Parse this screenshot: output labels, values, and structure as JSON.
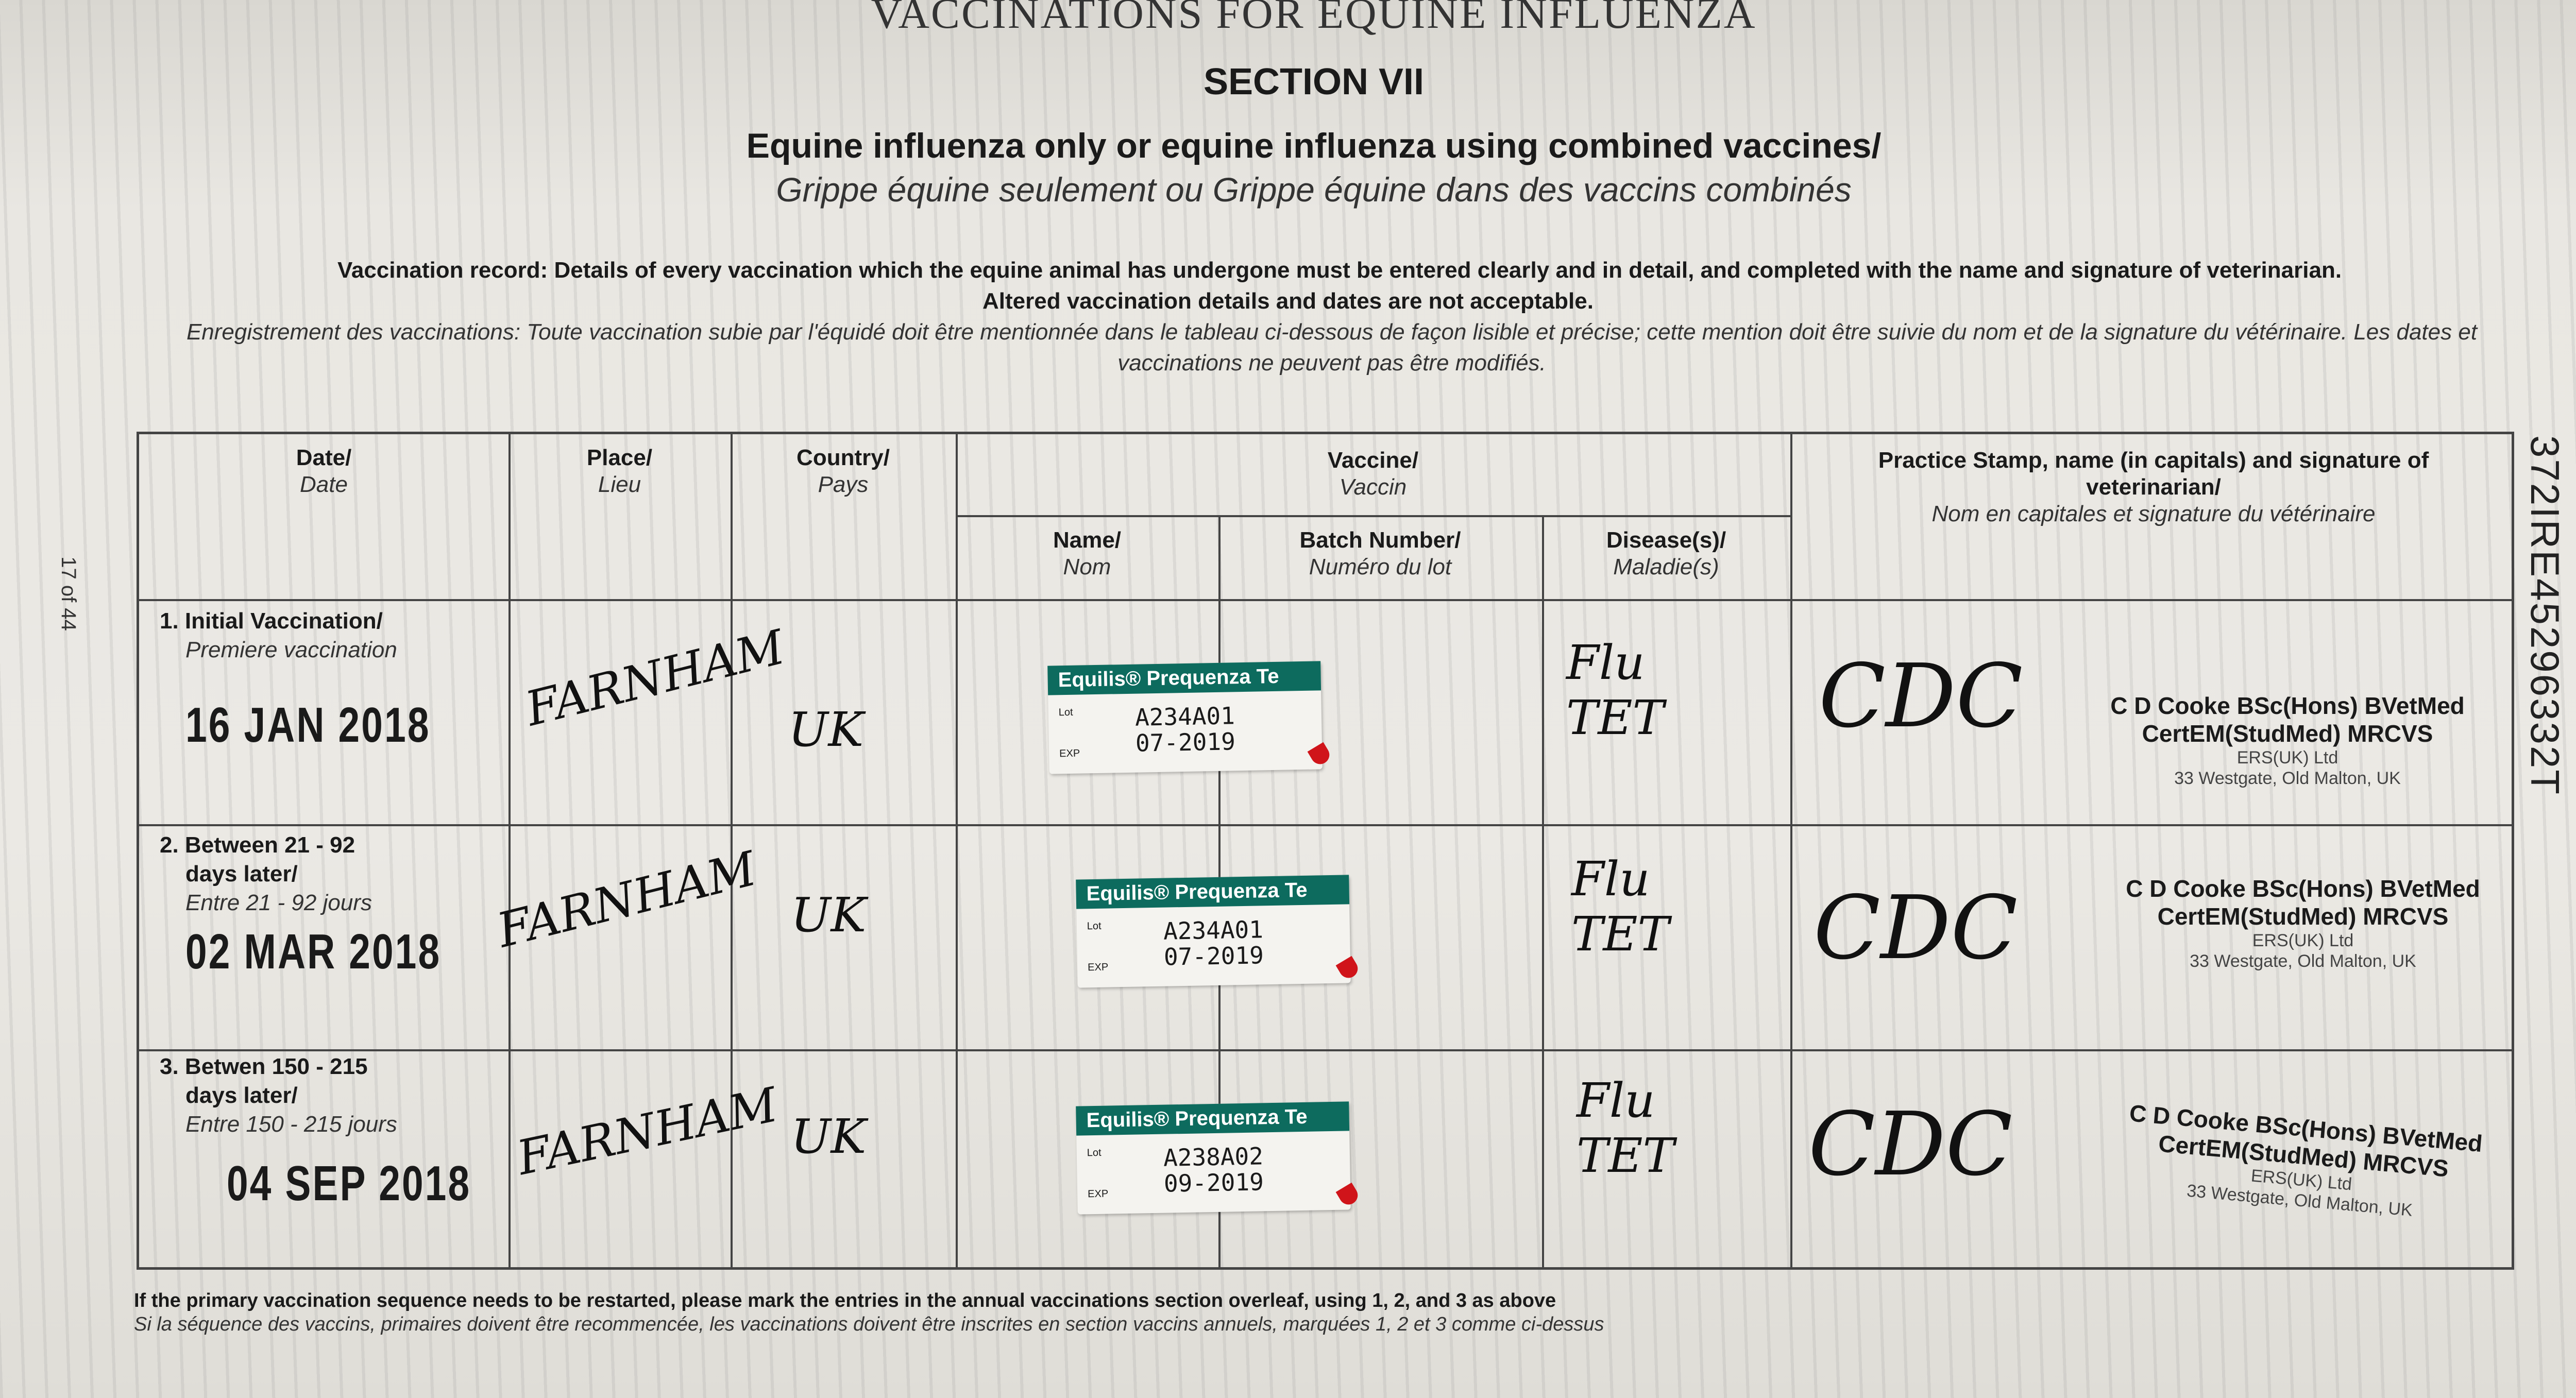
{
  "header": {
    "title": "VACCINATIONS FOR EQUINE INFLUENZA",
    "section": "SECTION VII",
    "subtitle_en": "Equine influenza only or equine influenza using combined vaccines/",
    "subtitle_fr": "Grippe équine seulement ou Grippe équine dans des vaccins combinés"
  },
  "instructions": {
    "en_line1": "Vaccination record: Details of every vaccination which the equine animal has undergone must be entered clearly and in detail, and completed with the name and signature of veterinarian.",
    "en_line2": "Altered vaccination details and dates are not acceptable.",
    "fr": "Enregistrement des vaccinations: Toute vaccination subie par l'équidé doit être mentionnée dans le tableau ci-dessous de façon lisible et précise; cette mention doit être suivie du nom et de la signature du vétérinaire. Les dates et vaccinations ne peuvent pas être modifiés."
  },
  "page_marker": "17 of 44",
  "reference_number": "372IRE45296332T",
  "table": {
    "headers": {
      "date": {
        "en": "Date/",
        "fr": "Date"
      },
      "place": {
        "en": "Place/",
        "fr": "Lieu"
      },
      "country": {
        "en": "Country/",
        "fr": "Pays"
      },
      "vaccine": {
        "en": "Vaccine/",
        "fr": "Vaccin"
      },
      "name": {
        "en": "Name/",
        "fr": "Nom"
      },
      "batch": {
        "en": "Batch Number/",
        "fr": "Numéro du lot"
      },
      "disease": {
        "en": "Disease(s)/",
        "fr": "Maladie(s)"
      },
      "stamp": {
        "en": "Practice Stamp, name (in capitals) and signature of veterinarian/",
        "fr": "Nom en capitales et signature du vétérinaire"
      }
    },
    "rows": [
      {
        "label_en1": "1. Initial Vaccination/",
        "label_en2": "",
        "label_fr": "Premiere vaccination",
        "date": "16 JAN 2018",
        "place": "FARNHAM",
        "country": "UK",
        "sticker": {
          "brand": "Equilis® Prequenza Te",
          "lot_label": "Lot",
          "exp_label": "EXP",
          "lot": "A234A01",
          "exp": "07-2019"
        },
        "disease_line1": "Flu",
        "disease_line2": "TET",
        "signature": "CDC",
        "stamp": {
          "name1": "C D Cooke BSc(Hons) BVetMed",
          "name2": "CertEM(StudMed) MRCVS",
          "company": "ERS(UK) Ltd",
          "address": "33 Westgate, Old Malton, UK"
        }
      },
      {
        "label_en1": "2. Between 21 - 92",
        "label_en2": "days later/",
        "label_fr": "Entre 21 - 92 jours",
        "date": "02 MAR 2018",
        "place": "FARNHAM",
        "country": "UK",
        "sticker": {
          "brand": "Equilis® Prequenza Te",
          "lot_label": "Lot",
          "exp_label": "EXP",
          "lot": "A234A01",
          "exp": "07-2019"
        },
        "disease_line1": "Flu",
        "disease_line2": "TET",
        "signature": "CDC",
        "stamp": {
          "name1": "C D Cooke BSc(Hons) BVetMed",
          "name2": "CertEM(StudMed) MRCVS",
          "company": "ERS(UK) Ltd",
          "address": "33 Westgate, Old Malton, UK"
        }
      },
      {
        "label_en1": "3. Betwen 150 - 215",
        "label_en2": "days later/",
        "label_fr": "Entre 150 - 215 jours",
        "date": "04 SEP 2018",
        "place": "FARNHAM",
        "country": "UK",
        "sticker": {
          "brand": "Equilis® Prequenza Te",
          "lot_label": "Lot",
          "exp_label": "EXP",
          "lot": "A238A02",
          "exp": "09-2019"
        },
        "disease_line1": "Flu",
        "disease_line2": "TET",
        "signature": "CDC",
        "stamp": {
          "name1": "C D Cooke BSc(Hons) BVetMed",
          "name2": "CertEM(StudMed) MRCVS",
          "company": "ERS(UK) Ltd",
          "address": "33 Westgate, Old Malton, UK"
        }
      }
    ]
  },
  "footer": {
    "en": "If the primary vaccination sequence needs to be restarted, please mark the entries in the annual vaccinations section overleaf, using 1, 2, and 3 as above",
    "fr": "Si la séquence des vaccins, primaires doivent être recommencée, les vaccinations doivent être inscrites en section vaccins annuels, marquées 1, 2 et 3 comme ci-dessus"
  },
  "colors": {
    "sticker_header": "#0d6b5e",
    "sticker_tab": "#d0141a",
    "paper": "#e4e2dc"
  }
}
